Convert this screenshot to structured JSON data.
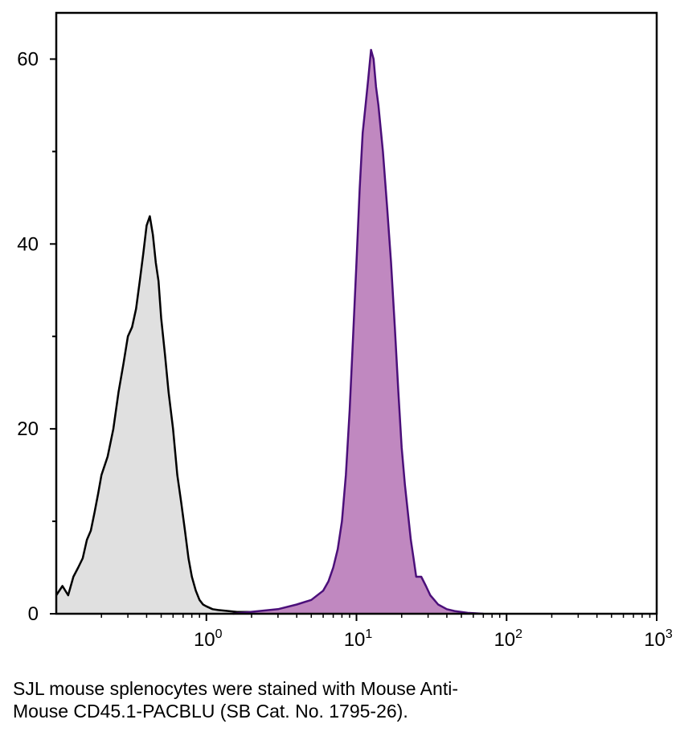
{
  "chart_data": {
    "type": "area",
    "title": "",
    "xlabel": "",
    "ylabel": "",
    "xscale": "log",
    "xlim": [
      0.1,
      1000
    ],
    "ylim": [
      0,
      65
    ],
    "grid": false,
    "legend": "none",
    "x_ticks": [
      {
        "value": 1,
        "base": "10",
        "exp": "0"
      },
      {
        "value": 10,
        "base": "10",
        "exp": "1"
      },
      {
        "value": 100,
        "base": "10",
        "exp": "2"
      },
      {
        "value": 1000,
        "base": "10",
        "exp": "3"
      }
    ],
    "y_ticks": [
      {
        "value": 0,
        "label": "0"
      },
      {
        "value": 20,
        "label": "20"
      },
      {
        "value": 40,
        "label": "40"
      },
      {
        "value": 60,
        "label": "60"
      }
    ],
    "y_minor_ticks": [
      10,
      30,
      50
    ],
    "series": [
      {
        "role": "control",
        "fill": "#e0e0e0",
        "stroke": "#000000",
        "x": [
          0.1,
          0.11,
          0.12,
          0.13,
          0.14,
          0.15,
          0.16,
          0.17,
          0.18,
          0.19,
          0.2,
          0.22,
          0.24,
          0.26,
          0.28,
          0.3,
          0.32,
          0.34,
          0.36,
          0.38,
          0.4,
          0.42,
          0.44,
          0.46,
          0.48,
          0.5,
          0.53,
          0.56,
          0.6,
          0.64,
          0.68,
          0.72,
          0.76,
          0.8,
          0.85,
          0.9,
          0.95,
          1.0,
          1.1,
          1.2,
          1.4,
          1.6,
          2.0,
          2.5,
          3.0
        ],
        "y": [
          2,
          3,
          2,
          4,
          5,
          6,
          8,
          9,
          11,
          13,
          15,
          17,
          20,
          24,
          27,
          30,
          31,
          33,
          36,
          39,
          42,
          43,
          41,
          38,
          36,
          32,
          28,
          24,
          20,
          15,
          12,
          9,
          6,
          4,
          2.5,
          1.5,
          1,
          0.8,
          0.5,
          0.4,
          0.3,
          0.2,
          0.2,
          0.1,
          0
        ]
      },
      {
        "role": "stained",
        "fill": "#c088c0",
        "stroke": "#4b0f7a",
        "x": [
          1.5,
          3,
          4,
          5,
          6,
          6.5,
          7,
          7.5,
          8,
          8.5,
          9,
          9.5,
          10,
          10.5,
          11,
          11.5,
          12,
          12.5,
          13,
          13.5,
          14,
          15,
          16,
          17,
          18,
          19,
          20,
          21,
          22,
          23,
          24,
          25,
          27,
          29,
          31,
          33,
          35,
          40,
          45,
          55,
          70
        ],
        "y": [
          0,
          0.5,
          1,
          1.5,
          2.5,
          3.5,
          5,
          7,
          10,
          15,
          22,
          30,
          38,
          46,
          52,
          55,
          58,
          61,
          60,
          57,
          55,
          50,
          44,
          38,
          31,
          24,
          18,
          14,
          11,
          8,
          6,
          4,
          4,
          3,
          2,
          1.5,
          1,
          0.5,
          0.3,
          0.1,
          0
        ]
      }
    ]
  },
  "caption": {
    "line1": "SJL mouse splenocytes were stained with Mouse Anti-",
    "line2": "Mouse CD45.1-PACBLU (SB Cat. No. 1795-26)."
  }
}
